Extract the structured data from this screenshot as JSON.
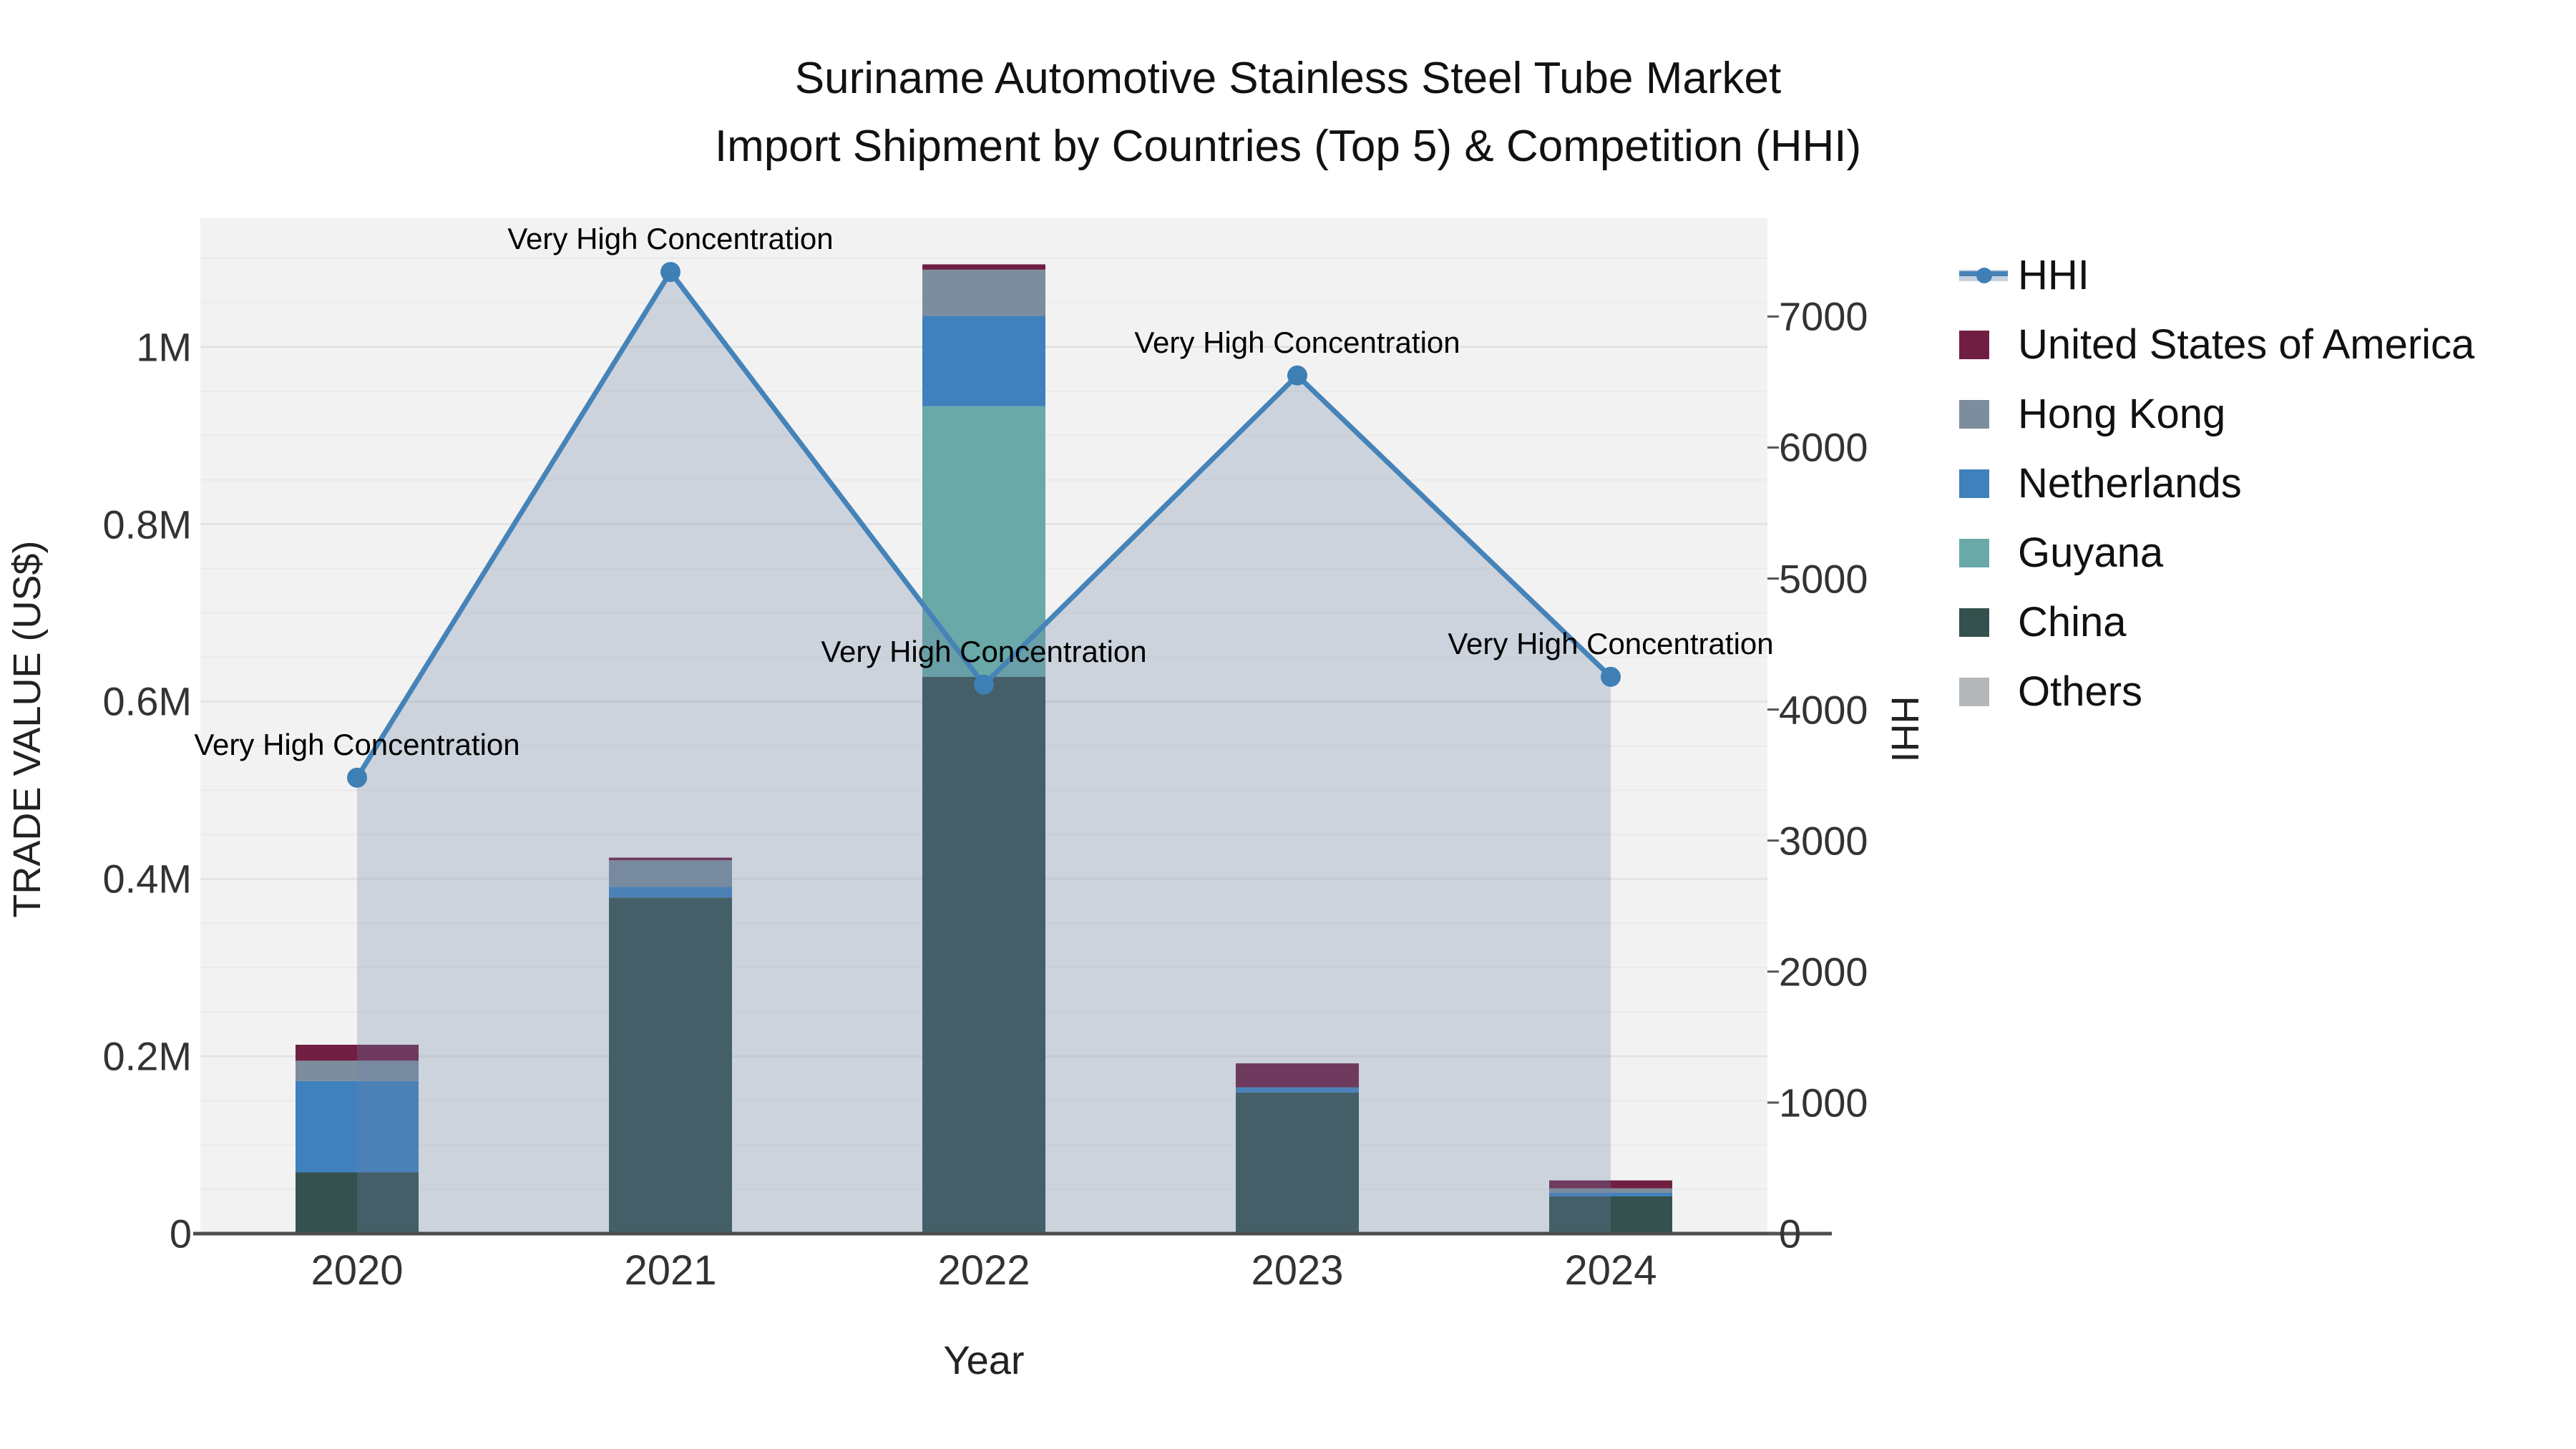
{
  "title": {
    "line1": "Suriname Automotive Stainless Steel Tube Market",
    "line2": "Import Shipment by Countries (Top 5) & Competition (HHI)"
  },
  "colors": {
    "background": "#ffffff",
    "plot_background": "#f2f2f2",
    "grid_minor": "#eaeaea",
    "grid_major": "#e3e3e3",
    "axis_line": "#4d4d4d",
    "tick_text": "#333333",
    "hhi_line": "#4583b8",
    "hhi_marker": "#3e7fb5",
    "hhi_fill": "rgba(109,134,168,0.28)",
    "legend_band": "#c7d1de",
    "united_states": "#701f42",
    "hong_kong": "#7d8d9d",
    "netherlands": "#4080bd",
    "guyana": "#69a9a7",
    "china": "#35514e",
    "others": "#b5b8ba"
  },
  "chart_data": {
    "type": "combo: stacked-bar (left axis) + line-area (right axis)",
    "categories": [
      "2020",
      "2021",
      "2022",
      "2023",
      "2024"
    ],
    "bar_series_bottom_to_top": [
      {
        "name": "China",
        "color_key": "china",
        "values": [
          69000,
          379000,
          628000,
          159000,
          42000
        ]
      },
      {
        "name": "Guyana",
        "color_key": "guyana",
        "values": [
          0,
          0,
          305000,
          0,
          0
        ]
      },
      {
        "name": "Netherlands",
        "color_key": "netherlands",
        "values": [
          103000,
          12000,
          102000,
          6000,
          4000
        ]
      },
      {
        "name": "Hong Kong",
        "color_key": "hong_kong",
        "values": [
          23000,
          30000,
          52000,
          0,
          5000
        ]
      },
      {
        "name": "United States of America",
        "color_key": "united_states",
        "values": [
          18000,
          3000,
          6000,
          27000,
          9000
        ]
      }
    ],
    "bar_totals": [
      213000,
      424000,
      1093000,
      192000,
      60000
    ],
    "hhi_series": {
      "name": "HHI",
      "axis": "right",
      "values": [
        3480,
        7340,
        4190,
        6550,
        4250
      ]
    },
    "annotations": [
      {
        "x": "2020",
        "text": "Very High Concentration"
      },
      {
        "x": "2021",
        "text": "Very High Concentration"
      },
      {
        "x": "2022",
        "text": "Very High Concentration"
      },
      {
        "x": "2023",
        "text": "Very High Concentration"
      },
      {
        "x": "2024",
        "text": "Very High Concentration"
      }
    ],
    "left_axis": {
      "title": "TRADE VALUE (US$)",
      "tick_values": [
        0,
        200000,
        400000,
        600000,
        800000,
        1000000
      ],
      "tick_labels": [
        "0",
        "0.2M",
        "0.4M",
        "0.6M",
        "0.8M",
        "1M"
      ],
      "range": [
        0,
        1145000
      ],
      "grid": "on, minor every 0.05M"
    },
    "right_axis": {
      "title": "HHI",
      "tick_values": [
        0,
        1000,
        2000,
        3000,
        4000,
        5000,
        6000,
        7000
      ],
      "tick_labels": [
        "0",
        "1000",
        "2000",
        "3000",
        "4000",
        "5000",
        "6000",
        "7000"
      ],
      "range": [
        0,
        7750
      ]
    },
    "x_axis": {
      "title": "Year",
      "tick_labels": [
        "2020",
        "2021",
        "2022",
        "2023",
        "2024"
      ]
    },
    "legend_position": "right"
  },
  "legend": {
    "items": [
      {
        "label": "HHI",
        "type": "line",
        "color_key": "hhi_line"
      },
      {
        "label": "United States of America",
        "type": "square",
        "color_key": "united_states"
      },
      {
        "label": "Hong Kong",
        "type": "square",
        "color_key": "hong_kong"
      },
      {
        "label": "Netherlands",
        "type": "square",
        "color_key": "netherlands"
      },
      {
        "label": "Guyana",
        "type": "square",
        "color_key": "guyana"
      },
      {
        "label": "China",
        "type": "square",
        "color_key": "china"
      },
      {
        "label": "Others",
        "type": "square",
        "color_key": "others"
      }
    ]
  }
}
